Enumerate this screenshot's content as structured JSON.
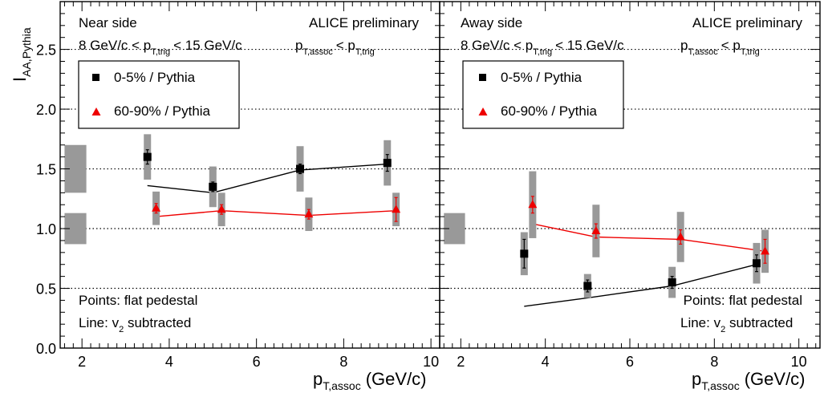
{
  "figure": {
    "ylabel_main": "I",
    "ylabel_sub": "AA,Pythia",
    "xlabel_main": "p",
    "xlabel_sub": "T,assoc",
    "xlabel_unit": "(GeV/c)"
  },
  "chart_data": [
    {
      "type": "scatter",
      "panel": "left",
      "title": "Near side",
      "preliminary": "ALICE preliminary",
      "cut_trig": {
        "pre": "8 GeV/c < p",
        "sub": "T,trig",
        "post": "< 15 GeV/c"
      },
      "cut_assoc": {
        "p1": "p",
        "sub1": "T,assoc",
        "mid": "< p",
        "sub2": "T,trig"
      },
      "note_points": "Points: flat pedestal",
      "note_line": {
        "pre": "Line: v",
        "sub": "2",
        "post": " subtracted"
      },
      "xlim": [
        1.5,
        10.2
      ],
      "ylim": [
        0,
        2.9
      ],
      "xticks": [
        "2",
        "4",
        "6",
        "8",
        "10"
      ],
      "yticks": [
        "0.0",
        "0.5",
        "1.0",
        "1.5",
        "2.0",
        "2.5"
      ],
      "grid": "horizontal-dotted",
      "legend_placement": "top-left",
      "series": [
        {
          "name": "0-5% / Pythia",
          "marker": "square",
          "color": "#000000",
          "x": [
            3.5,
            5.0,
            7.0,
            9.0
          ],
          "y": [
            1.6,
            1.35,
            1.5,
            1.55
          ],
          "stat_err": [
            0.06,
            0.04,
            0.04,
            0.07
          ],
          "sys_err": [
            0.19,
            0.17,
            0.19,
            0.19
          ],
          "line_x": [
            3.5,
            5.0,
            7.0,
            9.0
          ],
          "line_y": [
            1.36,
            1.3,
            1.49,
            1.54
          ]
        },
        {
          "name": "60-90% / Pythia",
          "marker": "triangle",
          "color": "#ee0000",
          "x": [
            3.7,
            5.2,
            7.2,
            9.2
          ],
          "y": [
            1.17,
            1.16,
            1.12,
            1.16
          ],
          "stat_err": [
            0.04,
            0.04,
            0.04,
            0.1
          ],
          "sys_err": [
            0.14,
            0.14,
            0.14,
            0.14
          ],
          "line_x": [
            3.7,
            5.2,
            7.2,
            9.2
          ],
          "line_y": [
            1.1,
            1.15,
            1.11,
            1.15
          ]
        }
      ],
      "norm_boxes": [
        {
          "x_range": [
            1.6,
            2.1
          ],
          "y_range": [
            1.3,
            1.7
          ]
        },
        {
          "x_range": [
            1.6,
            2.1
          ],
          "y_range": [
            0.87,
            1.13
          ]
        }
      ]
    },
    {
      "type": "scatter",
      "panel": "right",
      "title": "Away side",
      "preliminary": "ALICE preliminary",
      "cut_trig": {
        "pre": "8 GeV/c < p",
        "sub": "T,trig",
        "post": "< 15 GeV/c"
      },
      "cut_assoc": {
        "p1": "p",
        "sub1": "T,assoc",
        "mid": "< p",
        "sub2": "T,trig"
      },
      "note_points": "Points: flat pedestal",
      "note_line": {
        "pre": "Line: v",
        "sub": "2",
        "post": " subtracted"
      },
      "xlim": [
        1.5,
        10.5
      ],
      "ylim": [
        0,
        2.9
      ],
      "xticks": [
        "2",
        "4",
        "6",
        "8",
        "10"
      ],
      "yticks": [
        "0.0",
        "0.5",
        "1.0",
        "1.5",
        "2.0",
        "2.5"
      ],
      "grid": "horizontal-dotted",
      "legend_placement": "top-left",
      "series": [
        {
          "name": "0-5% / Pythia",
          "marker": "square",
          "color": "#000000",
          "x": [
            3.5,
            5.0,
            7.0,
            9.0
          ],
          "y": [
            0.79,
            0.52,
            0.55,
            0.71
          ],
          "stat_err": [
            0.12,
            0.05,
            0.05,
            0.07
          ],
          "sys_err": [
            0.18,
            0.1,
            0.13,
            0.17
          ],
          "line_x": [
            3.5,
            5.0,
            7.0,
            9.0
          ],
          "line_y": [
            0.35,
            0.42,
            0.52,
            0.7
          ]
        },
        {
          "name": "60-90% / Pythia",
          "marker": "triangle",
          "color": "#ee0000",
          "x": [
            3.7,
            5.2,
            7.2,
            9.2
          ],
          "y": [
            1.2,
            0.98,
            0.93,
            0.81
          ],
          "stat_err": [
            0.07,
            0.06,
            0.06,
            0.1
          ],
          "sys_err": [
            0.28,
            0.22,
            0.21,
            0.18
          ],
          "line_x": [
            3.7,
            5.2,
            7.2,
            9.2
          ],
          "line_y": [
            1.04,
            0.93,
            0.91,
            0.81
          ]
        }
      ],
      "norm_boxes": [
        {
          "x_range": [
            1.6,
            2.1
          ],
          "y_range": [
            0.87,
            1.13
          ]
        }
      ]
    }
  ]
}
